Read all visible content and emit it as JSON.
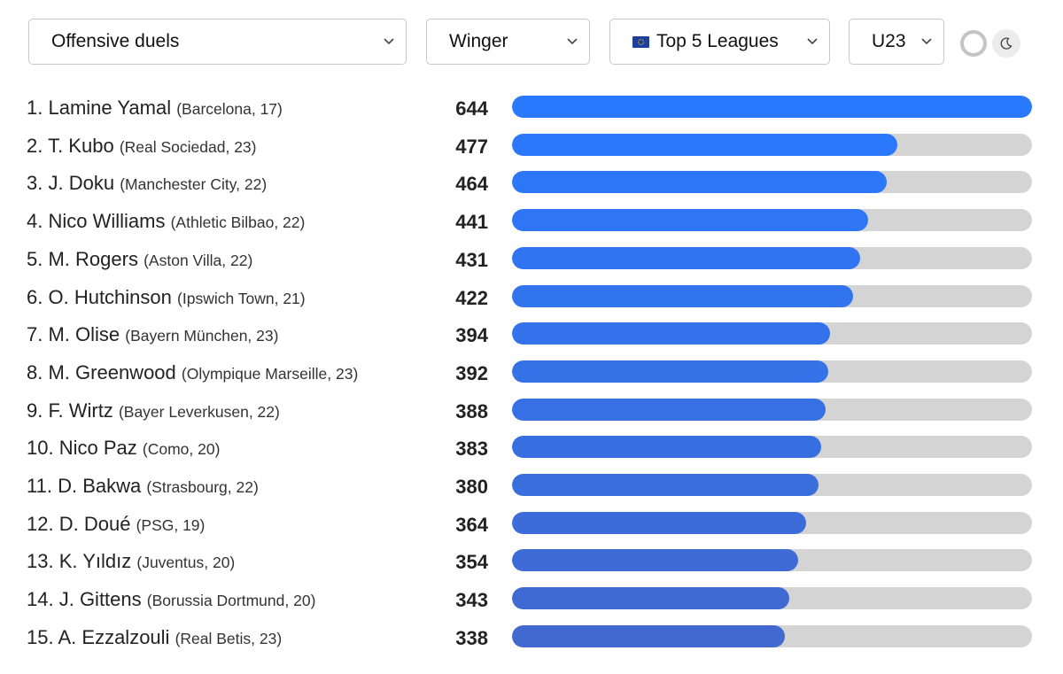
{
  "filters": {
    "metric": {
      "label": "Offensive duels",
      "icon": "chevron-down-icon"
    },
    "position": {
      "label": "Winger",
      "icon": "chevron-down-icon"
    },
    "league": {
      "label": "Top 5 Leagues",
      "flag": "eu-flag-icon",
      "icon": "chevron-down-icon"
    },
    "age": {
      "label": "U23",
      "icon": "chevron-down-icon"
    }
  },
  "theme_toggle": {
    "light_icon": "circle-icon",
    "dark_icon": "moon-icon"
  },
  "colors": {
    "bar_start": "#2979ff",
    "bar_end": "#4169cf",
    "track": "#d4d4d4"
  },
  "rows": [
    {
      "rank": "1.",
      "name": "Lamine Yamal",
      "meta": "(Barcelona, 17)",
      "value": "644"
    },
    {
      "rank": "2.",
      "name": "T. Kubo",
      "meta": "(Real Sociedad, 23)",
      "value": "477"
    },
    {
      "rank": "3.",
      "name": "J. Doku",
      "meta": "(Manchester City, 22)",
      "value": "464"
    },
    {
      "rank": "4.",
      "name": "Nico Williams",
      "meta": "(Athletic Bilbao, 22)",
      "value": "441"
    },
    {
      "rank": "5.",
      "name": "M. Rogers",
      "meta": "(Aston Villa, 22)",
      "value": "431"
    },
    {
      "rank": "6.",
      "name": "O. Hutchinson",
      "meta": "(Ipswich Town, 21)",
      "value": "422"
    },
    {
      "rank": "7.",
      "name": "M. Olise",
      "meta": "(Bayern München, 23)",
      "value": "394"
    },
    {
      "rank": "8.",
      "name": "M. Greenwood",
      "meta": "(Olympique Marseille, 23)",
      "value": "392"
    },
    {
      "rank": "9.",
      "name": "F. Wirtz",
      "meta": "(Bayer Leverkusen, 22)",
      "value": "388"
    },
    {
      "rank": "10.",
      "name": "Nico Paz",
      "meta": "(Como, 20)",
      "value": "383"
    },
    {
      "rank": "11.",
      "name": "D. Bakwa",
      "meta": "(Strasbourg, 22)",
      "value": "380"
    },
    {
      "rank": "12.",
      "name": "D. Doué",
      "meta": "(PSG, 19)",
      "value": "364"
    },
    {
      "rank": "13.",
      "name": "K. Yıldız",
      "meta": "(Juventus, 20)",
      "value": "354"
    },
    {
      "rank": "14.",
      "name": "J. Gittens",
      "meta": "(Borussia Dortmund, 20)",
      "value": "343"
    },
    {
      "rank": "15.",
      "name": "A. Ezzalzouli",
      "meta": "(Real Betis, 23)",
      "value": "338"
    }
  ],
  "chart_data": {
    "type": "bar",
    "orientation": "horizontal",
    "title": "",
    "xlabel": "",
    "ylabel": "",
    "xlim": [
      0,
      644
    ],
    "grid": false,
    "categories": [
      "Lamine Yamal",
      "T. Kubo",
      "J. Doku",
      "Nico Williams",
      "M. Rogers",
      "O. Hutchinson",
      "M. Olise",
      "M. Greenwood",
      "F. Wirtz",
      "Nico Paz",
      "D. Bakwa",
      "D. Doué",
      "K. Yıldız",
      "J. Gittens",
      "A. Ezzalzouli"
    ],
    "values": [
      644,
      477,
      464,
      441,
      431,
      422,
      394,
      392,
      388,
      383,
      380,
      364,
      354,
      343,
      338
    ]
  }
}
